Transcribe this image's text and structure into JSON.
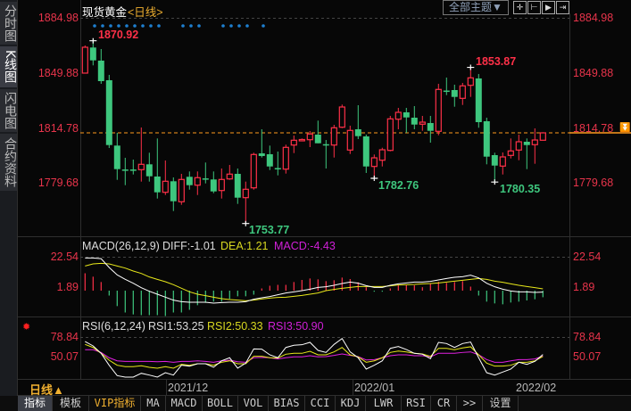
{
  "sidebar": {
    "items": [
      {
        "label": "分时图",
        "active": false
      },
      {
        "label": "K线图",
        "active": true
      },
      {
        "label": "闪电图",
        "active": false
      },
      {
        "label": "合约资料",
        "active": false
      }
    ]
  },
  "header": {
    "title": "现货黄金",
    "period": "<日线>",
    "theme_button": "全部主题▼",
    "tool_icons": [
      "crosshair-icon",
      "zoom-left-icon",
      "play-right-icon",
      "goto-end-icon"
    ]
  },
  "price_axis": {
    "ticks": [
      "1884.98",
      "1849.88",
      "1814.78",
      "1779.68"
    ],
    "current_marker_icon": "double-down-arrow-icon"
  },
  "annotations": {
    "high1": "1870.92",
    "low1": "1753.77",
    "low2": "1782.76",
    "high2": "1853.87",
    "low3": "1780.35"
  },
  "macd": {
    "label": "MACD(26,12,9)",
    "diff": "DIFF:-1.01",
    "dea": "DEA:1.21",
    "macd": "MACD:-4.43",
    "ticks": [
      "22.54",
      "1.89"
    ]
  },
  "rsi": {
    "label": "RSI(6,12,24)",
    "rsi1": "RSI1:53.25",
    "rsi2": "RSI2:50.33",
    "rsi3": "RSI3:50.90",
    "ticks": [
      "78.84",
      "50.07"
    ]
  },
  "time_axis": {
    "period_button": "日线▲",
    "labels": [
      "2021/12",
      "2022/01",
      "2022/02"
    ]
  },
  "tabs": [
    {
      "label": "指标",
      "active": true
    },
    {
      "label": "模板"
    },
    {
      "label": "VIP指标",
      "vip": true
    },
    {
      "label": "MA"
    },
    {
      "label": "MACD"
    },
    {
      "label": "BOLL"
    },
    {
      "label": "VOL"
    },
    {
      "label": "BIAS"
    },
    {
      "label": "CCI"
    },
    {
      "label": "KDJ"
    },
    {
      "label": "LWR"
    },
    {
      "label": "RSI"
    },
    {
      "label": "CR"
    },
    {
      "label": ">>"
    },
    {
      "label": "设置"
    }
  ],
  "colors": {
    "up": "#ff3048",
    "down": "#3ec77e",
    "diff": "#ffffff",
    "dea": "#e8e81a",
    "rsi3": "#e020e0",
    "current_line": "#ff9a1e",
    "marker": "#1e7fd0"
  },
  "chart_data": {
    "type": "candlestick",
    "price_range": [
      1753.77,
      1884.98
    ],
    "last_price_line": 1811.89,
    "signal_dot_candles": [
      2,
      3,
      4,
      5,
      6,
      7,
      8,
      9,
      10,
      13,
      14,
      15,
      18,
      19,
      20,
      21,
      23
    ],
    "ohlc": [
      [
        1850.18,
        1867.89,
        1850.18,
        1866.75
      ],
      [
        1866.58,
        1870.92,
        1855.15,
        1858.35
      ],
      [
        1858.18,
        1865.61,
        1843.32,
        1845.03
      ],
      [
        1845.61,
        1849.04,
        1802.17,
        1804.06
      ],
      [
        1803.71,
        1811.89,
        1781.77,
        1788.63
      ],
      [
        1788.4,
        1795.88,
        1778.34,
        1788.2
      ],
      [
        1788.4,
        1794.74,
        1785.2,
        1788.2
      ],
      [
        1788.28,
        1815.32,
        1780.63,
        1791.71
      ],
      [
        1791.71,
        1799.14,
        1780.63,
        1784.05
      ],
      [
        1783.88,
        1808.29,
        1769.77,
        1773.77
      ],
      [
        1773.77,
        1794.17,
        1772.05,
        1780.85
      ],
      [
        1780.85,
        1783.31,
        1761.77,
        1768.05
      ],
      [
        1767.71,
        1785.6,
        1765.77,
        1782.0
      ],
      [
        1783.71,
        1787.14,
        1775.48,
        1778.34
      ],
      [
        1778.34,
        1787.14,
        1772.05,
        1783.14
      ],
      [
        1782.7,
        1792.86,
        1779.48,
        1782.5
      ],
      [
        1782.0,
        1787.14,
        1773.2,
        1774.34
      ],
      [
        1774.91,
        1789.03,
        1769.77,
        1782.0
      ],
      [
        1782.34,
        1791.31,
        1781.77,
        1785.43
      ],
      [
        1785.6,
        1789.03,
        1766.34,
        1770.34
      ],
      [
        1770.34,
        1780.63,
        1753.77,
        1775.71
      ],
      [
        1776.63,
        1799.14,
        1775.48,
        1798.0
      ],
      [
        1798.74,
        1814.17,
        1796.06,
        1797.03
      ],
      [
        1798.17,
        1803.71,
        1788.05,
        1790.34
      ],
      [
        1789.3,
        1799.88,
        1784.63,
        1789.1
      ],
      [
        1788.63,
        1804.29,
        1785.77,
        1802.57
      ],
      [
        1804.06,
        1810.17,
        1798.91,
        1807.14
      ],
      [
        1807.2,
        1808.29,
        1806.74,
        1807.6
      ],
      [
        1807.49,
        1813.03,
        1802.74,
        1811.14
      ],
      [
        1810.74,
        1819.72,
        1805.2,
        1805.2
      ],
      [
        1804.6,
        1807.31,
        1789.03,
        1804.4
      ],
      [
        1804.06,
        1817.03,
        1796.06,
        1815.14
      ],
      [
        1815.49,
        1830.0,
        1814.92,
        1828.46
      ],
      [
        1800.86,
        1816.46,
        1798.34,
        1813.43
      ],
      [
        1814.17,
        1829.6,
        1807.89,
        1809.77
      ],
      [
        1809.6,
        1810.74,
        1786.17,
        1790.34
      ],
      [
        1790.34,
        1798.0,
        1782.76,
        1795.88
      ],
      [
        1794.34,
        1802.34,
        1790.34,
        1801.03
      ],
      [
        1800.63,
        1822.75,
        1800.06,
        1820.86
      ],
      [
        1820.63,
        1827.89,
        1814.17,
        1825.03
      ],
      [
        1825.03,
        1827.89,
        1811.89,
        1821.77
      ],
      [
        1821.6,
        1829.03,
        1814.17,
        1817.2
      ],
      [
        1817.43,
        1822.75,
        1813.2,
        1818.74
      ],
      [
        1818.17,
        1822.75,
        1805.6,
        1813.2
      ],
      [
        1812.86,
        1843.32,
        1810.34,
        1839.72
      ],
      [
        1839.0,
        1847.32,
        1836.06,
        1838.8
      ],
      [
        1839.32,
        1842.75,
        1828.63,
        1834.92
      ],
      [
        1834.0,
        1843.89,
        1829.77,
        1842.0
      ],
      [
        1842.35,
        1853.87,
        1834.92,
        1847.15
      ],
      [
        1846.75,
        1849.61,
        1815.15,
        1818.74
      ],
      [
        1819.32,
        1821.6,
        1791.71,
        1796.63
      ],
      [
        1797.6,
        1799.14,
        1780.35,
        1790.91
      ],
      [
        1790.57,
        1799.31,
        1785.2,
        1796.46
      ],
      [
        1797.43,
        1808.29,
        1795.48,
        1800.29
      ],
      [
        1800.86,
        1810.74,
        1794.34,
        1806.17
      ],
      [
        1806.17,
        1808.29,
        1788.63,
        1804.06
      ],
      [
        1804.29,
        1814.74,
        1792.06,
        1807.31
      ],
      [
        1807.14,
        1812.29,
        1807.14,
        1811.89
      ]
    ],
    "macd_hist": [
      11.7,
      9.4,
      5.8,
      -3.3,
      -10.4,
      -14.7,
      -16,
      -16.5,
      -16.5,
      -16.5,
      -17.1,
      -14.7,
      -14.7,
      -12.9,
      -9.8,
      -8.2,
      -7.4,
      -7.4,
      -5.6,
      -3.8,
      -3.8,
      -2.7,
      1.5,
      3.3,
      3.9,
      3.9,
      5.8,
      7.2,
      8.2,
      7.6,
      6.4,
      7.0,
      8.8,
      7.8,
      5.6,
      2.3,
      -0.7,
      -0.7,
      1.5,
      3.8,
      3.6,
      3.6,
      2.3,
      4.6,
      6.0,
      5.2,
      5.8,
      6.4,
      2.7,
      -3.3,
      -7.4,
      -8.6,
      -9.2,
      -8.0,
      -7.4,
      -6.6,
      -5.8,
      -4.43
    ],
    "diff": [
      22.0,
      22.0,
      21.5,
      15.6,
      10.6,
      7.6,
      5.0,
      2.0,
      -0.4,
      -2.4,
      -4.4,
      -6.4,
      -7.4,
      -7.8,
      -7.8,
      -7.8,
      -8.4,
      -8.0,
      -7.8,
      -7.8,
      -7.4,
      -5.8,
      -4.8,
      -4.0,
      -2.8,
      -1.6,
      -0.8,
      0,
      1.0,
      2.2,
      2.6,
      3.6,
      4.8,
      5.8,
      5.0,
      3.4,
      2.2,
      2.2,
      3.6,
      4.6,
      5.2,
      5.8,
      5.8,
      6.2,
      7.2,
      8.2,
      9.0,
      9.4,
      10.4,
      8.6,
      5.0,
      2.6,
      1.0,
      -0.2,
      -0.8,
      -0.8,
      -1.2,
      -1.01
    ],
    "dea": [
      16.6,
      18.0,
      18.4,
      18.0,
      16.6,
      15.2,
      13.2,
      11.6,
      9.2,
      7.6,
      6.0,
      4.0,
      1.6,
      -0.8,
      -2.4,
      -3.4,
      -4.4,
      -5.4,
      -6.0,
      -6.4,
      -6.8,
      -6.4,
      -5.6,
      -5.0,
      -4.6,
      -4.4,
      -3.8,
      -3.2,
      -2.4,
      -1.6,
      0,
      0.8,
      1.6,
      2.2,
      2.8,
      2.8,
      2.8,
      2.8,
      3.2,
      3.8,
      4.0,
      4.2,
      4.6,
      4.8,
      5.2,
      5.8,
      6.4,
      7.0,
      7.6,
      8.2,
      7.6,
      6.4,
      5.6,
      4.6,
      3.6,
      2.8,
      2.0,
      1.21
    ],
    "macd_range": [
      -17.1,
      22.54
    ],
    "rsi1": [
      72.3,
      65.8,
      54.9,
      37.4,
      22.2,
      20.0,
      20.0,
      25.6,
      23.0,
      20.0,
      26.5,
      23.0,
      37.4,
      36.1,
      39.6,
      39.6,
      34.4,
      43.9,
      48.4,
      33.1,
      40.5,
      61.4,
      61.0,
      52.7,
      48.4,
      63.5,
      66.7,
      67.5,
      71.0,
      59.2,
      56.2,
      68.0,
      76.6,
      57.0,
      48.4,
      31.8,
      37.4,
      43.9,
      62.2,
      64.9,
      60.5,
      54.9,
      53.6,
      47.1,
      71.0,
      69.3,
      63.5,
      69.3,
      71.4,
      48.4,
      26.5,
      23.0,
      27.4,
      31.8,
      41.8,
      38.7,
      43.1,
      53.25
    ],
    "rsi2": [
      68.0,
      63.5,
      54.9,
      44.8,
      37.4,
      35.3,
      35.3,
      36.6,
      34.4,
      33.1,
      35.3,
      33.1,
      38.7,
      37.4,
      39.6,
      39.6,
      37.4,
      41.8,
      43.9,
      39.6,
      39.6,
      50.5,
      50.5,
      48.4,
      48.0,
      53.6,
      54.9,
      54.9,
      57.9,
      52.7,
      52.7,
      57.0,
      63.5,
      52.7,
      49.7,
      41.8,
      43.9,
      48.4,
      56.2,
      58.3,
      57.0,
      54.9,
      54.0,
      50.5,
      62.2,
      62.2,
      60.2,
      62.8,
      64.5,
      52.7,
      40.5,
      36.1,
      36.1,
      37.4,
      41.8,
      41.8,
      43.9,
      50.33
    ],
    "rsi3": [
      60.2,
      60.2,
      56.2,
      48.4,
      43.9,
      43.1,
      43.1,
      43.1,
      43.1,
      42.6,
      43.1,
      41.8,
      43.1,
      43.1,
      43.9,
      43.1,
      41.8,
      43.9,
      44.8,
      42.6,
      41.8,
      48.4,
      48.9,
      48.4,
      46.6,
      48.4,
      49.7,
      49.7,
      51.4,
      49.7,
      50.1,
      51.8,
      54.0,
      51.8,
      50.1,
      45.2,
      45.7,
      48.4,
      51.4,
      52.7,
      52.7,
      51.4,
      51.4,
      49.7,
      54.9,
      54.9,
      54.9,
      56.2,
      57.0,
      52.7,
      45.7,
      41.8,
      41.8,
      43.9,
      45.7,
      45.7,
      46.6,
      50.9
    ]
  }
}
